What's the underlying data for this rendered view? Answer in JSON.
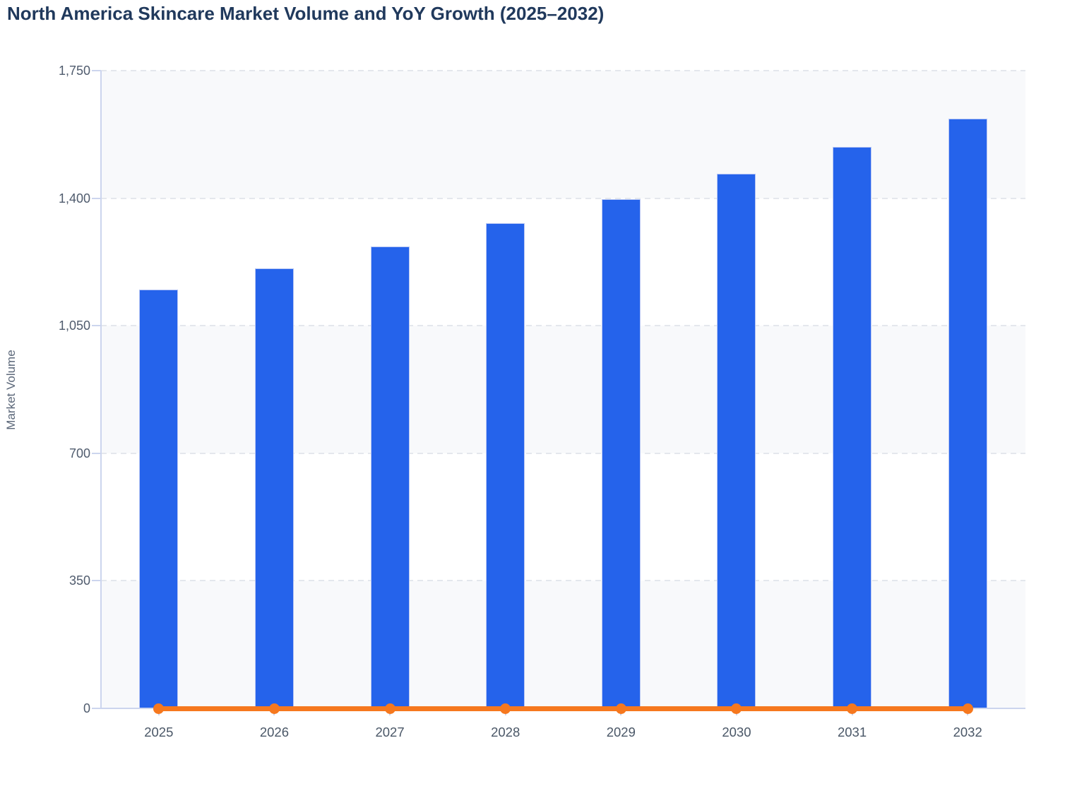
{
  "chart_data": {
    "type": "bar",
    "title": "North America Skincare Market Volume and YoY Growth (2025–2032)",
    "ylabel": "Market Volume",
    "xlabel": "",
    "categories": [
      "2025",
      "2026",
      "2027",
      "2028",
      "2029",
      "2030",
      "2031",
      "2032"
    ],
    "series": [
      {
        "name": "Market Volume",
        "type": "bar",
        "color": "#2563eb",
        "values": [
          1150,
          1208,
          1268,
          1331,
          1398,
          1468,
          1541,
          1618
        ]
      },
      {
        "name": "YoY Growth",
        "type": "line",
        "color": "#f6781e",
        "values": [
          0,
          0,
          0,
          0,
          0,
          0,
          0,
          0
        ]
      }
    ],
    "ylim": [
      0,
      1750
    ],
    "y_ticks": [
      0,
      350,
      700,
      1050,
      1400,
      1750
    ],
    "y_tick_labels": [
      "0",
      "350",
      "700",
      "1,050",
      "1,400",
      "1,750"
    ],
    "grid": "horizontal-dashed",
    "legend": "none",
    "plot_bands_alternating": true
  },
  "colors": {
    "bar": "#2563eb",
    "line": "#f6781e",
    "band": "#f8f9fb",
    "gridline": "#e4e7ed",
    "axis": "#ccd5ee",
    "tick_text": "#4f5b6d",
    "title_text": "#20395c",
    "axis_title_text": "#5a6678"
  }
}
